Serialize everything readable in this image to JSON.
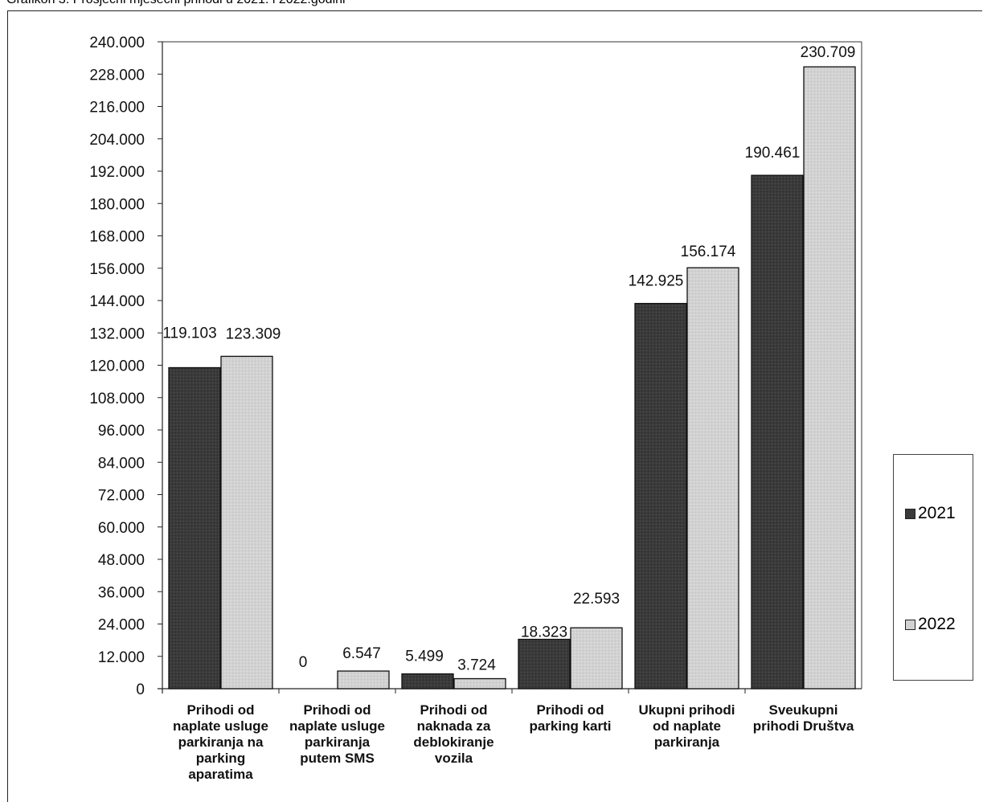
{
  "page": {
    "title": "Grafikon 3. Prosječni mjesečni prihodi u 2021. i 2022.godini"
  },
  "chart_data": {
    "type": "bar",
    "title": "",
    "xlabel": "",
    "ylabel": "",
    "ylim": [
      0,
      240000
    ],
    "yticks": [
      0,
      12000,
      24000,
      36000,
      48000,
      60000,
      72000,
      84000,
      96000,
      108000,
      120000,
      132000,
      144000,
      156000,
      168000,
      180000,
      192000,
      204000,
      216000,
      228000,
      240000
    ],
    "ytick_labels": [
      "0",
      "12.000",
      "24.000",
      "36.000",
      "48.000",
      "60.000",
      "72.000",
      "84.000",
      "96.000",
      "108.000",
      "120.000",
      "132.000",
      "144.000",
      "156.000",
      "168.000",
      "180.000",
      "192.000",
      "204.000",
      "216.000",
      "228.000",
      "240.000"
    ],
    "categories": [
      "Prihodi od naplate usluge parkiranja na parking aparatima",
      "Prihodi od naplate usluge parkiranja putem SMS",
      "Prihodi od naknada za deblokiranje vozila",
      "Prihodi od parking karti",
      "Ukupni prihodi od naplate parkiranja",
      "Sveukupni prihodi Društva"
    ],
    "category_lines": [
      [
        "Prihodi od",
        "naplate usluge",
        "parkiranja na",
        "parking",
        "aparatima"
      ],
      [
        "Prihodi od",
        "naplate usluge",
        "parkiranja",
        "putem SMS"
      ],
      [
        "Prihodi od",
        "naknada za",
        "deblokiranje",
        "vozila"
      ],
      [
        "Prihodi od",
        "parking karti"
      ],
      [
        "Ukupni prihodi",
        "od naplate",
        "parkiranja"
      ],
      [
        "Sveukupni",
        "prihodi Društva"
      ]
    ],
    "series": [
      {
        "name": "2021",
        "color": "#3a3a3a",
        "values": [
          119103,
          0,
          5499,
          18323,
          142925,
          190461
        ],
        "labels": [
          "119.103",
          "0",
          "5.499",
          "18.323",
          "142.925",
          "190.461"
        ]
      },
      {
        "name": "2022",
        "color": "#d2d2d2",
        "values": [
          123309,
          6547,
          3724,
          22593,
          156174,
          230709
        ],
        "labels": [
          "123.309",
          "6.547",
          "3.724",
          "22.593",
          "156.174",
          "230.709"
        ]
      }
    ],
    "grid": false,
    "legend": "right"
  }
}
